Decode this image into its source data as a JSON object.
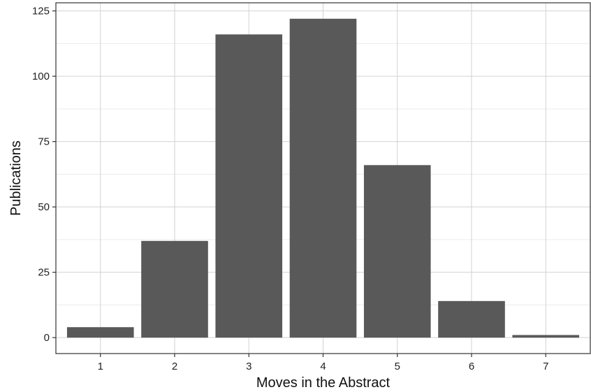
{
  "chart_data": {
    "type": "bar",
    "title": "",
    "xlabel": "Moves in the Abstract",
    "ylabel": "Publications",
    "categories": [
      "1",
      "2",
      "3",
      "4",
      "5",
      "6",
      "7"
    ],
    "values": [
      4,
      37,
      116,
      122,
      66,
      14,
      1
    ],
    "ylim": [
      -6.1,
      128.1
    ],
    "yticks": [
      0,
      25,
      50,
      75,
      100,
      125
    ],
    "ytick_labels": [
      "0",
      "25",
      "50",
      "75",
      "100",
      "125"
    ],
    "grid": true,
    "legend": "none",
    "colors": {
      "bar": "#595959",
      "panel_border": "#333333",
      "background": "#ffffff"
    }
  }
}
